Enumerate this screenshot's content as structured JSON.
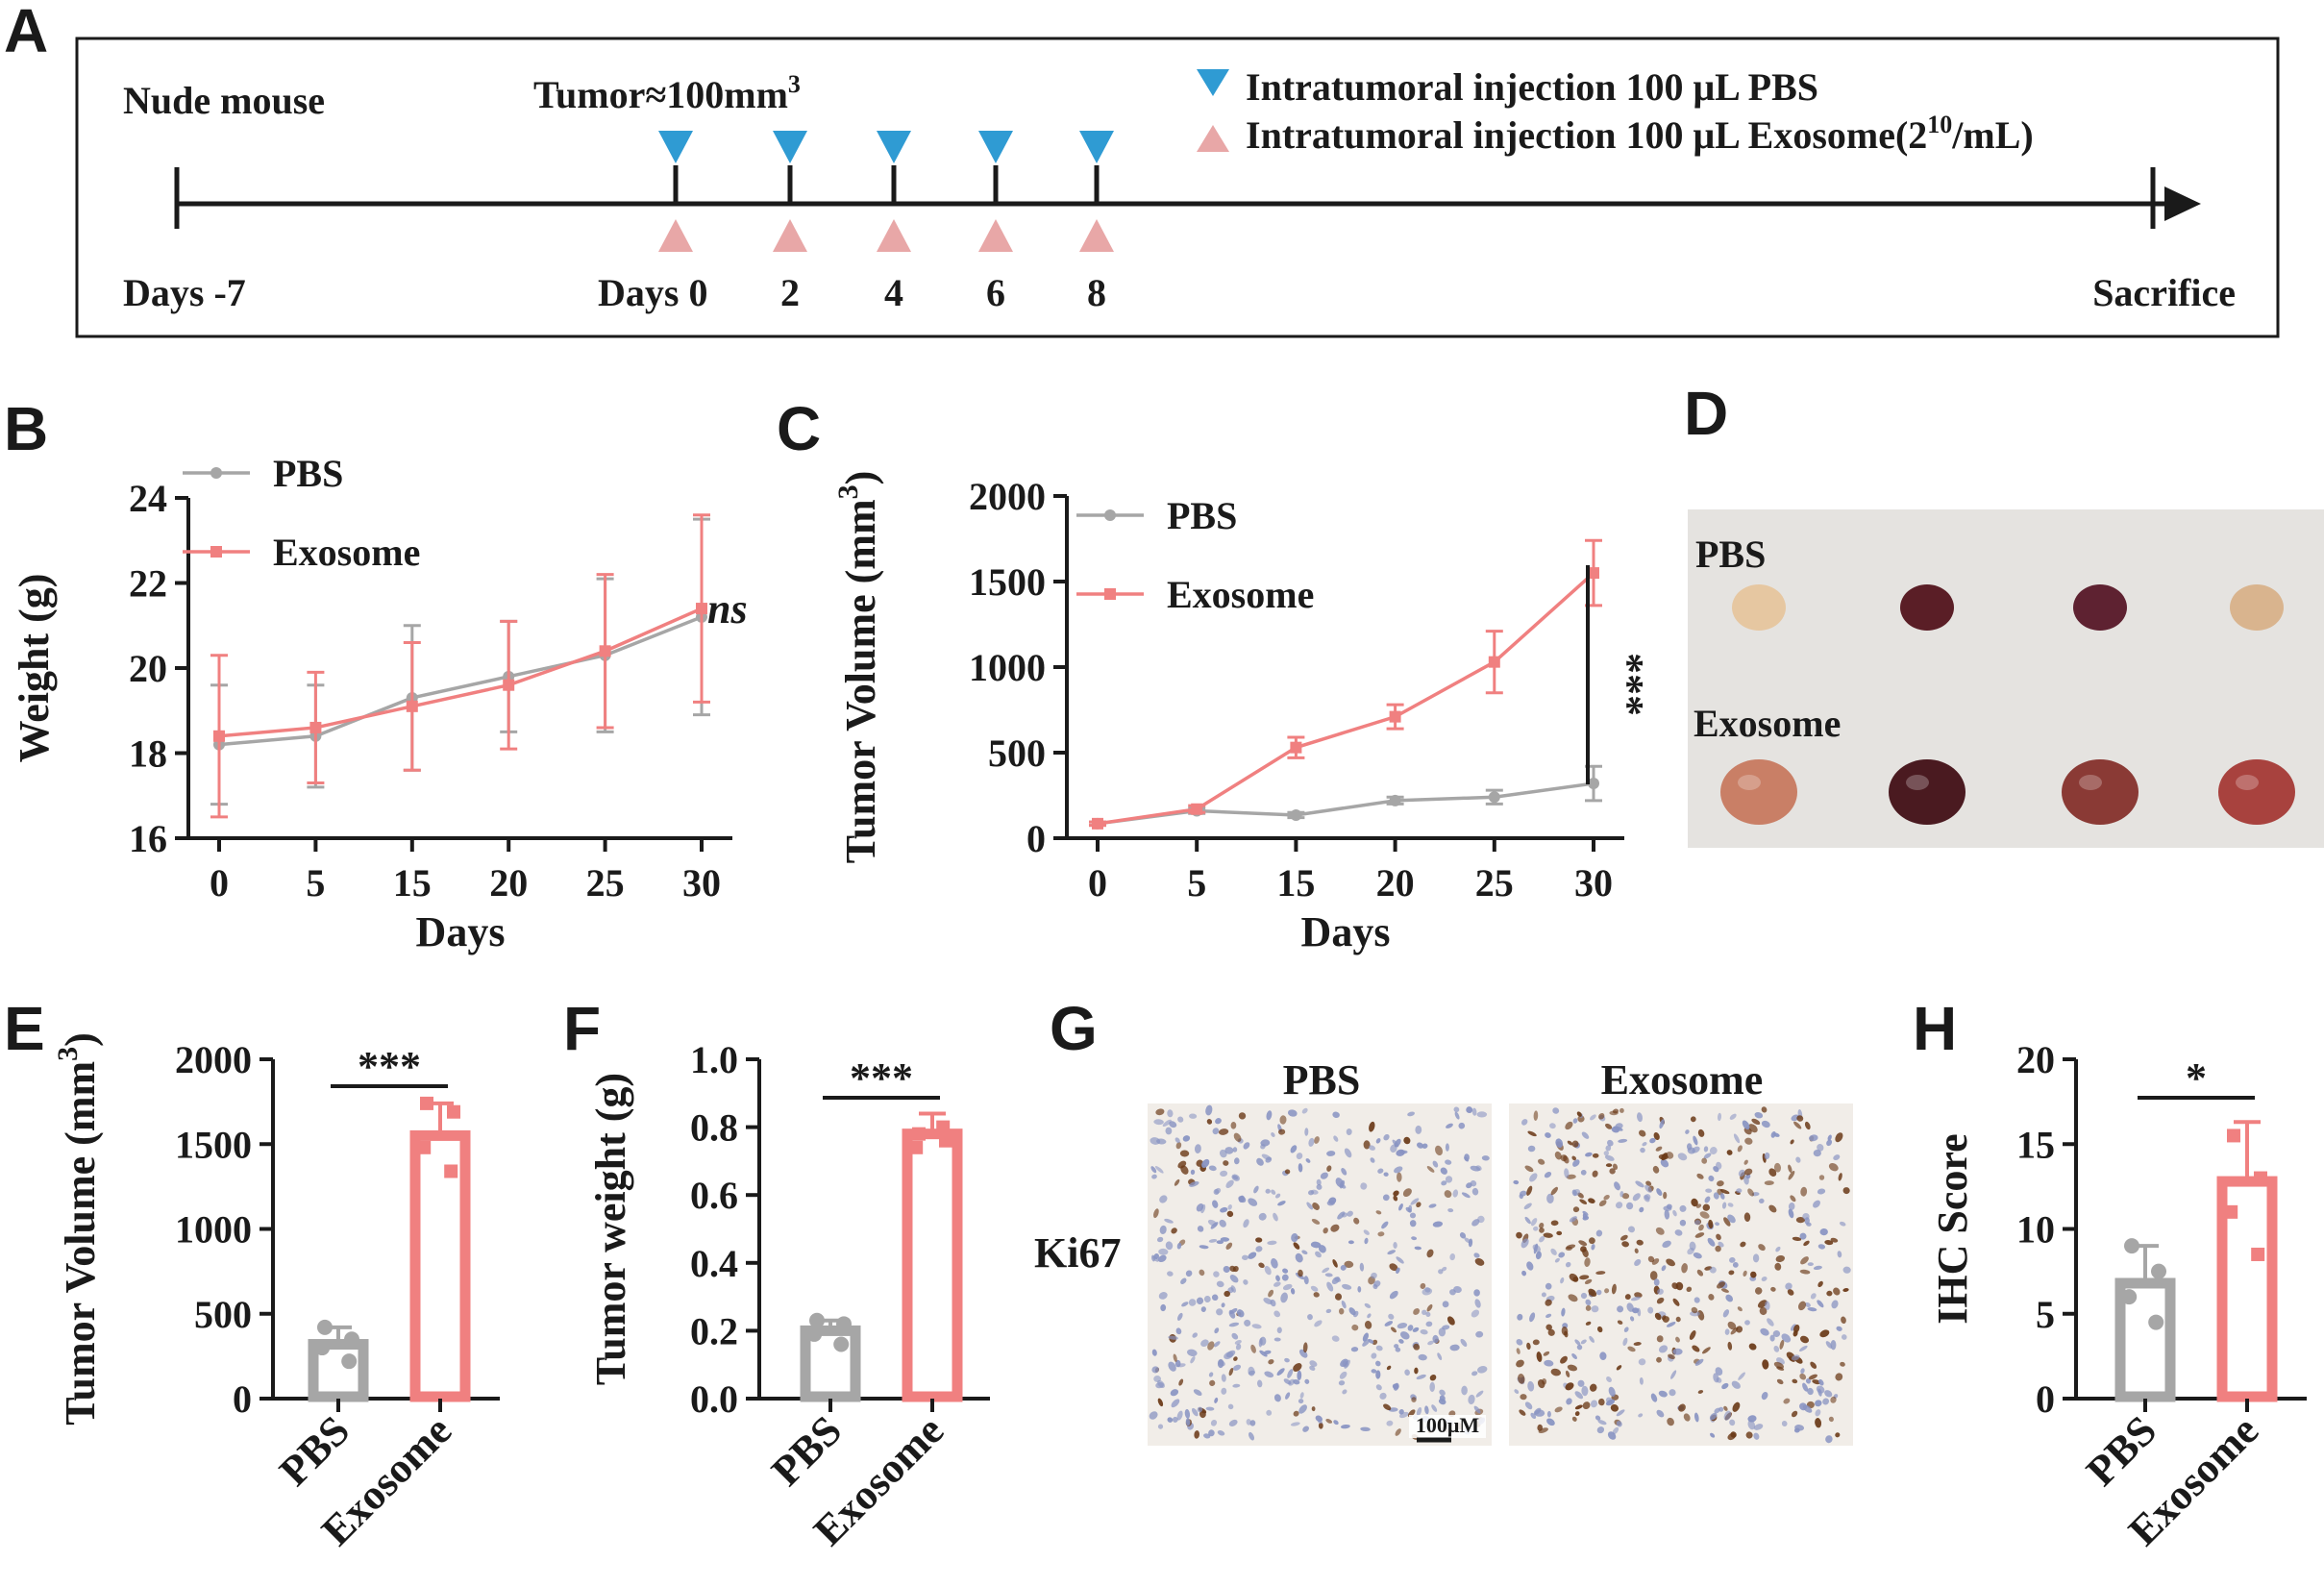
{
  "colors": {
    "pbs": "#a6a6a6",
    "exo": "#f08080",
    "blue": "#2f9bd3",
    "pink": "#e8a7a7",
    "ink": "#1a1a1a"
  },
  "panel_letters": {
    "a": "A",
    "b": "B",
    "c": "C",
    "d": "D",
    "e": "E",
    "f": "F",
    "g": "G",
    "h": "H"
  },
  "timeline": {
    "start_label": "Nude mouse",
    "tumor_label": "Tumor≈100mm",
    "tumor_sup": "3",
    "legend_pbs": "Intratumoral injection 100 μL PBS",
    "legend_exo_pre": "Intratumoral injection 100 μL Exosome(2",
    "legend_exo_sup": "10",
    "legend_exo_post": "/mL)",
    "day_start": "Days -7",
    "day0": "Days 0",
    "days": [
      "2",
      "4",
      "6",
      "8"
    ],
    "end_label": "Sacrifice",
    "injection_days": [
      0,
      2,
      4,
      6,
      8
    ],
    "markers": {
      "pbs": "down-triangle",
      "exo": "up-triangle"
    }
  },
  "photo": {
    "label_pbs": "PBS",
    "label_exo": "Exosome",
    "tumor_colors_pbs": [
      "#e6c7a1",
      "#5a1e26",
      "#5e2231",
      "#d9b48e"
    ],
    "tumor_colors_exo": [
      "#c97f66",
      "#4a1a20",
      "#8a3a35",
      "#a8423e"
    ]
  },
  "ihc": {
    "label_pbs": "PBS",
    "label_exo": "Exosome",
    "row_label": "Ki67",
    "scale_bar": "100μM",
    "bg": "#f1ede8",
    "nucleus_blue": "#8893c2",
    "nucleus_brown": "#6b3a18"
  },
  "chart_data": [
    {
      "panel": "B",
      "type": "line",
      "xlabel": "Days",
      "ylabel": "Weight (g)",
      "x": [
        0,
        5,
        15,
        20,
        25,
        30
      ],
      "ylim": [
        16,
        24
      ],
      "yticks": [
        16,
        18,
        20,
        22,
        24
      ],
      "series": [
        {
          "name": "PBS",
          "values": [
            18.2,
            18.4,
            19.3,
            19.8,
            20.3,
            21.2
          ],
          "err": [
            1.4,
            1.2,
            1.7,
            1.3,
            1.8,
            2.3
          ]
        },
        {
          "name": "Exosome",
          "values": [
            18.4,
            18.6,
            19.1,
            19.6,
            20.4,
            21.4
          ],
          "err": [
            1.9,
            1.3,
            1.5,
            1.5,
            1.8,
            2.2
          ]
        }
      ],
      "annotation": "ns"
    },
    {
      "panel": "C",
      "type": "line",
      "xlabel": "Days",
      "ylabel": "Tumor Volume (mm",
      "ylabel_sup": "3",
      "ylabel_post": ")",
      "x": [
        0,
        5,
        15,
        20,
        25,
        30
      ],
      "ylim": [
        0,
        2000
      ],
      "yticks": [
        0,
        500,
        1000,
        1500,
        2000
      ],
      "series": [
        {
          "name": "PBS",
          "values": [
            85,
            160,
            135,
            220,
            240,
            320
          ],
          "err": [
            10,
            15,
            15,
            20,
            40,
            100
          ]
        },
        {
          "name": "Exosome",
          "values": [
            85,
            170,
            530,
            710,
            1030,
            1550
          ],
          "err": [
            10,
            20,
            60,
            70,
            180,
            190
          ]
        }
      ],
      "annotation": "***"
    },
    {
      "panel": "E",
      "type": "bar",
      "ylabel": "Tumor Volume (mm",
      "ylabel_sup": "3",
      "ylabel_post": ")",
      "categories": [
        "PBS",
        "Exosome"
      ],
      "values": [
        320,
        1550
      ],
      "err": [
        100,
        190
      ],
      "points": [
        [
          420,
          350,
          300,
          220
        ],
        [
          1740,
          1690,
          1480,
          1340
        ]
      ],
      "ylim": [
        0,
        2000
      ],
      "yticks": [
        0,
        500,
        1000,
        1500,
        2000
      ],
      "annotation": "***"
    },
    {
      "panel": "F",
      "type": "bar",
      "ylabel": "Tumor weight (g)",
      "categories": [
        "PBS",
        "Exosome"
      ],
      "values": [
        0.2,
        0.78
      ],
      "err": [
        0.03,
        0.06
      ],
      "points": [
        [
          0.23,
          0.22,
          0.19,
          0.16
        ],
        [
          0.78,
          0.76,
          0.74,
          0.8
        ]
      ],
      "ylim": [
        0,
        1.0
      ],
      "yticks": [
        0.0,
        0.2,
        0.4,
        0.6,
        0.8,
        1.0
      ],
      "annotation": "***"
    },
    {
      "panel": "H",
      "type": "bar",
      "ylabel": "IHC Score",
      "categories": [
        "PBS",
        "Exosome"
      ],
      "values": [
        6.8,
        12.8
      ],
      "err": [
        2.2,
        3.5
      ],
      "points": [
        [
          9.0,
          7.5,
          6.0,
          4.5
        ],
        [
          15.5,
          13.0,
          11.0,
          8.5
        ]
      ],
      "ylim": [
        0,
        20
      ],
      "yticks": [
        0,
        5,
        10,
        15,
        20
      ],
      "annotation": "*"
    }
  ]
}
